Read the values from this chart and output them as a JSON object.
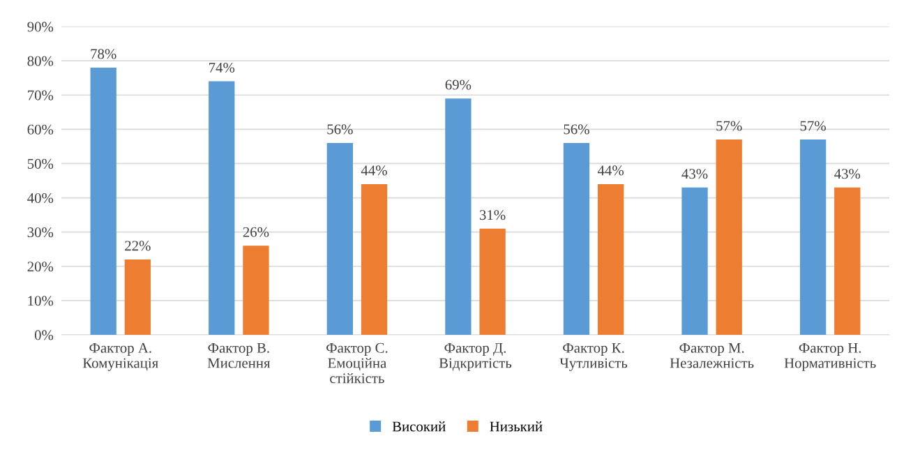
{
  "chart_data": {
    "type": "bar",
    "categories": [
      "Фактор А.\nКомунікація",
      "Фактор В.\nМислення",
      "Фактор С.\nЕмоційна\nстійкість",
      "Фактор Д.\nВідкритість",
      "Фактор К.\nЧутливість",
      "Фактор М.\nНезалежність",
      "Фактор Н.\nНормативність"
    ],
    "series": [
      {
        "name": "Високий",
        "color": "#5b9bd5",
        "values": [
          78,
          74,
          56,
          69,
          56,
          43,
          57
        ],
        "value_labels": [
          "78%",
          "74%",
          "56%",
          "69%",
          "56%",
          "43%",
          "57%"
        ]
      },
      {
        "name": "Низький",
        "color": "#ed7d31",
        "values": [
          22,
          26,
          44,
          31,
          44,
          57,
          43
        ],
        "value_labels": [
          "22%",
          "26%",
          "44%",
          "31%",
          "44%",
          "57%",
          "43%"
        ]
      }
    ],
    "ylim": [
      0,
      90
    ],
    "yticks": [
      {
        "value": 0,
        "label": "0%"
      },
      {
        "value": 10,
        "label": "10%"
      },
      {
        "value": 20,
        "label": "20%"
      },
      {
        "value": 30,
        "label": "30%"
      },
      {
        "value": 40,
        "label": "40%"
      },
      {
        "value": 50,
        "label": "50%"
      },
      {
        "value": 60,
        "label": "60%"
      },
      {
        "value": 70,
        "label": "70%"
      },
      {
        "value": 80,
        "label": "80%"
      },
      {
        "value": 90,
        "label": "90%"
      }
    ],
    "grid": "y",
    "legend": "bottom"
  }
}
